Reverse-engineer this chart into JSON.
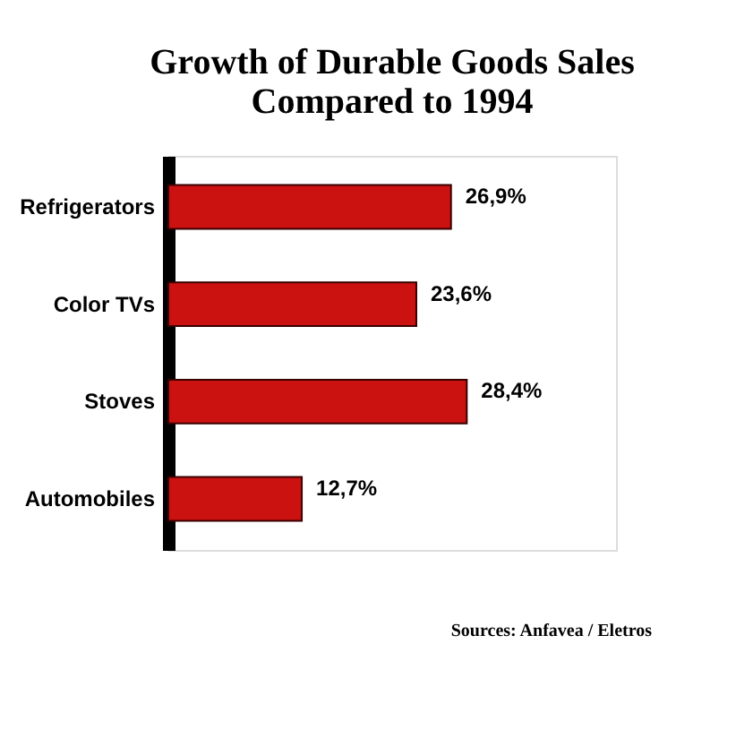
{
  "chart_data": {
    "type": "bar",
    "orientation": "horizontal",
    "title": "Growth of Durable Goods Sales Compared to 1994",
    "categories": [
      "Refrigerators",
      "Color TVs",
      "Stoves",
      "Automobiles"
    ],
    "values": [
      26.9,
      23.6,
      28.4,
      12.7
    ],
    "value_labels": [
      "26,9%",
      "23,6%",
      "28,4%",
      "12,7%"
    ],
    "color": "#cc1111",
    "annotations": [
      "Sources: Anfavea / Eletros"
    ]
  }
}
